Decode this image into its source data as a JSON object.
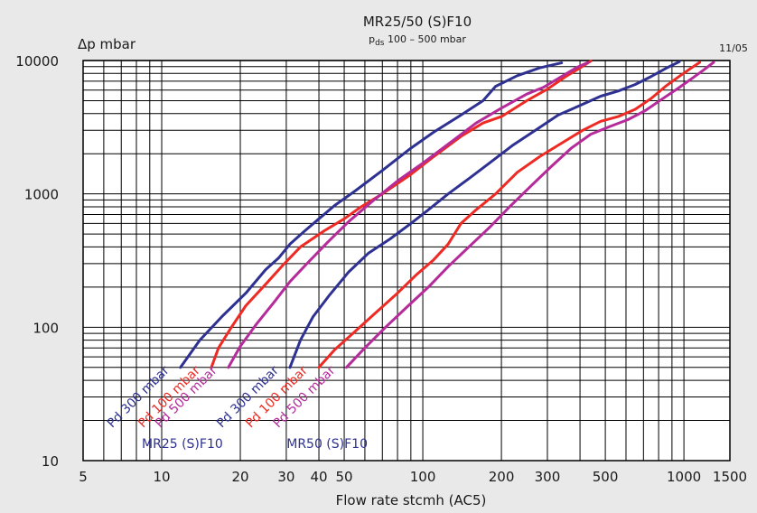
{
  "chart_data": {
    "type": "line",
    "title": "MR25/50 (S)F10",
    "subtitle": {
      "main": "p",
      "sub": "ds",
      "rest": " 100 – 500 mbar"
    },
    "ylabel": "Δp mbar",
    "xlabel": "Flow rate stcmh (AC5)",
    "date_code": "11/05",
    "x_scale": "log",
    "y_scale": "log",
    "xlim": [
      5,
      1500
    ],
    "ylim": [
      10,
      10000
    ],
    "grid": true,
    "x_ticks": [
      {
        "v": 5,
        "label": "5"
      },
      {
        "v": 10,
        "label": "10"
      },
      {
        "v": 20,
        "label": "20"
      },
      {
        "v": 30,
        "label": "30"
      },
      {
        "v": 40,
        "label": "40"
      },
      {
        "v": 50,
        "label": "50"
      },
      {
        "v": 100,
        "label": "100"
      },
      {
        "v": 200,
        "label": "200"
      },
      {
        "v": 300,
        "label": "300"
      },
      {
        "v": 500,
        "label": "500"
      },
      {
        "v": 1000,
        "label": "1000"
      },
      {
        "v": 1500,
        "label": "1500"
      }
    ],
    "y_ticks": [
      {
        "v": 10,
        "label": "10"
      },
      {
        "v": 100,
        "label": "100"
      },
      {
        "v": 1000,
        "label": "1000"
      },
      {
        "v": 10000,
        "label": "10000"
      }
    ],
    "group_labels": [
      {
        "text": "MR25 (S)F10",
        "color": "#2e3192",
        "x": 12,
        "y": 12.4
      },
      {
        "text": "MR50 (S)F10",
        "color": "#2e3192",
        "x": 43,
        "y": 12.4
      }
    ],
    "series": [
      {
        "name": "Pd 300 mbar",
        "color": "#2e3192",
        "x": [
          11.8,
          14,
          17,
          21,
          25,
          28,
          31,
          35,
          40,
          46,
          55,
          70,
          90,
          110,
          140,
          170,
          190,
          230,
          280,
          340
        ],
        "y": [
          50,
          80,
          120,
          180,
          270,
          330,
          420,
          520,
          650,
          820,
          1050,
          1500,
          2200,
          2900,
          3900,
          5000,
          6400,
          7700,
          8800,
          9600
        ]
      },
      {
        "name": "Pd 100 mbar",
        "color": "#ee2a24",
        "x": [
          15.5,
          16.5,
          18.5,
          21,
          25,
          29,
          34,
          42,
          50,
          58,
          70,
          90,
          110,
          140,
          170,
          200,
          250,
          300,
          350,
          400,
          440
        ],
        "y": [
          50,
          70,
          100,
          145,
          210,
          290,
          400,
          530,
          650,
          800,
          1000,
          1400,
          1900,
          2700,
          3400,
          3800,
          5000,
          6100,
          7500,
          8800,
          9900
        ]
      },
      {
        "name": "Pd 500 mbar",
        "color": "#b52b9a",
        "x": [
          18,
          20,
          23,
          27,
          31,
          36,
          43,
          52,
          65,
          80,
          100,
          130,
          160,
          200,
          250,
          290,
          340,
          390,
          430
        ],
        "y": [
          50,
          72,
          105,
          155,
          220,
          300,
          430,
          620,
          900,
          1250,
          1700,
          2500,
          3400,
          4400,
          5600,
          6300,
          7600,
          8900,
          9700
        ]
      },
      {
        "name": "Pd 300 mbar",
        "color": "#2e3192",
        "x": [
          31,
          34,
          38,
          44,
          52,
          62,
          75,
          90,
          105,
          125,
          150,
          180,
          220,
          270,
          330,
          400,
          480,
          560,
          650,
          750,
          850,
          960
        ],
        "y": [
          50,
          80,
          120,
          175,
          260,
          360,
          460,
          600,
          760,
          1000,
          1300,
          1700,
          2300,
          3000,
          3900,
          4600,
          5400,
          5900,
          6600,
          7600,
          8700,
          9800
        ]
      },
      {
        "name": "Pd 100 mbar",
        "color": "#ee2a24",
        "x": [
          40,
          46,
          54,
          65,
          80,
          95,
          110,
          125,
          140,
          160,
          190,
          230,
          280,
          340,
          410,
          480,
          560,
          650,
          750,
          850,
          950,
          1050,
          1150
        ],
        "y": [
          50,
          68,
          90,
          125,
          180,
          250,
          320,
          420,
          600,
          760,
          1000,
          1450,
          1900,
          2400,
          3000,
          3500,
          3800,
          4300,
          5200,
          6400,
          7500,
          8600,
          9700
        ]
      },
      {
        "name": "Pd 500 mbar",
        "color": "#b52b9a",
        "x": [
          51,
          60,
          72,
          88,
          105,
          125,
          150,
          180,
          215,
          260,
          310,
          370,
          440,
          520,
          610,
          710,
          820,
          950,
          1080,
          1200,
          1300
        ],
        "y": [
          50,
          70,
          100,
          145,
          200,
          285,
          400,
          560,
          800,
          1150,
          1600,
          2200,
          2800,
          3200,
          3600,
          4200,
          5100,
          6200,
          7400,
          8600,
          9700
        ]
      }
    ]
  }
}
